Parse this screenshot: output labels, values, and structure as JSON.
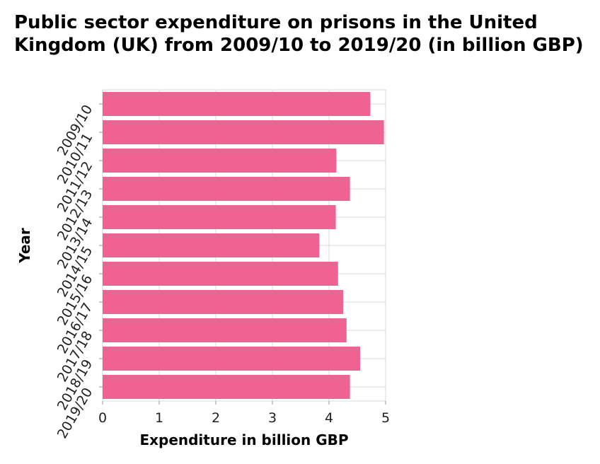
{
  "chart_data": {
    "type": "bar",
    "orientation": "horizontal",
    "title": "Public sector expenditure on prisons in the United Kingdom (UK) from 2009/10 to 2019/20 (in billion GBP)",
    "xlabel": "Expenditure in billion GBP",
    "ylabel": "Year",
    "categories": [
      "2009/10",
      "2010/11",
      "2011/12",
      "2012/13",
      "2013/14",
      "2014/15",
      "2015/16",
      "2016/17",
      "2017/18",
      "2018/19",
      "2019/20"
    ],
    "values": [
      4.73,
      4.97,
      4.13,
      4.37,
      4.12,
      3.83,
      4.16,
      4.25,
      4.31,
      4.55,
      4.37
    ],
    "xlim": [
      0,
      5
    ],
    "xticks": [
      0,
      1,
      2,
      3,
      4,
      5
    ],
    "grid": true,
    "bar_color": "#f06292",
    "grid_color": "#d9d9d9"
  }
}
